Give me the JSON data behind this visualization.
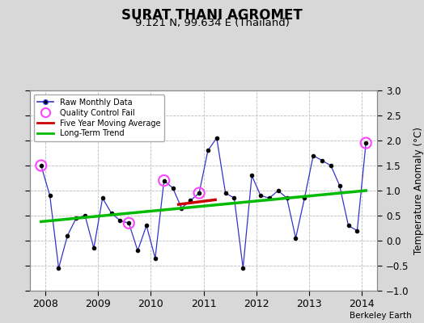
{
  "title": "SURAT THANI AGROMET",
  "subtitle": "9.121 N, 99.634 E (Thailand)",
  "ylabel": "Temperature Anomaly (°C)",
  "attribution": "Berkeley Earth",
  "ylim": [
    -1.0,
    3.0
  ],
  "xlim": [
    2007.7,
    2014.3
  ],
  "yticks": [
    -1.0,
    -0.5,
    0.0,
    0.5,
    1.0,
    1.5,
    2.0,
    2.5,
    3.0
  ],
  "xticks": [
    2008,
    2009,
    2010,
    2011,
    2012,
    2013,
    2014
  ],
  "raw_times": [
    2007.917,
    2008.083,
    2008.25,
    2008.417,
    2008.583,
    2008.75,
    2008.917,
    2009.083,
    2009.25,
    2009.417,
    2009.583,
    2009.75,
    2009.917,
    2010.083,
    2010.25,
    2010.417,
    2010.583,
    2010.75,
    2010.917,
    2011.083,
    2011.25,
    2011.417,
    2011.583,
    2011.75,
    2011.917,
    2012.083,
    2012.25,
    2012.417,
    2012.583,
    2012.75,
    2012.917,
    2013.083,
    2013.25,
    2013.417,
    2013.583,
    2013.75,
    2013.917,
    2014.083
  ],
  "raw_values": [
    1.5,
    0.9,
    -0.55,
    0.1,
    0.45,
    0.5,
    -0.15,
    0.85,
    0.55,
    0.4,
    0.35,
    -0.2,
    0.3,
    -0.35,
    1.2,
    1.05,
    0.65,
    0.8,
    0.95,
    1.8,
    2.05,
    0.95,
    0.85,
    -0.55,
    1.3,
    0.9,
    0.85,
    1.0,
    0.85,
    0.05,
    0.85,
    1.7,
    1.6,
    1.5,
    1.1,
    0.3,
    0.2,
    1.95
  ],
  "qc_fail_times": [
    2007.917,
    2009.583,
    2010.25,
    2010.917,
    2014.083
  ],
  "qc_fail_values": [
    1.5,
    0.35,
    1.2,
    0.95,
    1.95
  ],
  "moving_avg_times": [
    2010.5,
    2011.25
  ],
  "moving_avg_values": [
    0.72,
    0.82
  ],
  "trend_times": [
    2007.917,
    2014.083
  ],
  "trend_values": [
    0.38,
    1.0
  ],
  "bg_color": "#d8d8d8",
  "plot_bg": "#ffffff",
  "grid_color": "#bbbbbb",
  "raw_line_color": "#3333cc",
  "raw_marker_color": "#000000",
  "qc_color": "#ff44ff",
  "mavg_color": "#cc0000",
  "trend_color": "#00bb00"
}
